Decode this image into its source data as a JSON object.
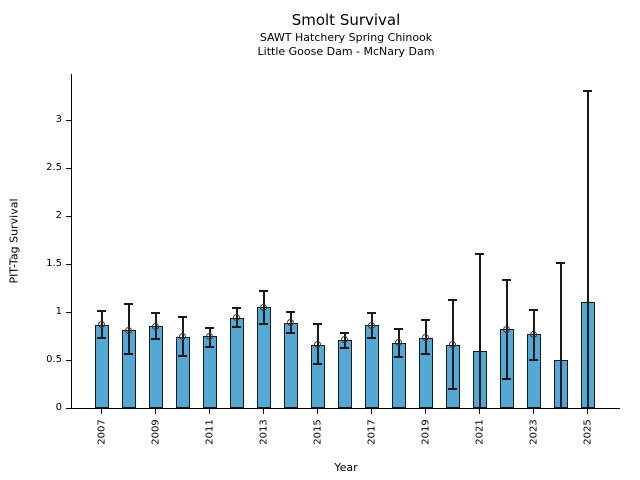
{
  "header": {
    "title": "Smolt Survival",
    "subtitle1": "SAWT Hatchery Spring Chinook",
    "subtitle2": "Little Goose Dam - McNary Dam"
  },
  "chart_data": {
    "type": "bar",
    "title": "Smolt Survival",
    "subtitle": [
      "SAWT Hatchery Spring Chinook",
      "Little Goose Dam - McNary Dam"
    ],
    "xlabel": "Year",
    "ylabel": "PIT-Tag Survival",
    "categories": [
      2007,
      2008,
      2009,
      2010,
      2011,
      2012,
      2013,
      2014,
      2015,
      2016,
      2017,
      2018,
      2019,
      2020,
      2021,
      2022,
      2023,
      2024,
      2025
    ],
    "values": [
      0.87,
      0.81,
      0.85,
      0.74,
      0.75,
      0.94,
      1.05,
      0.89,
      0.66,
      0.71,
      0.86,
      0.68,
      0.73,
      0.66,
      0.59,
      0.82,
      0.77,
      0.5,
      1.1
    ],
    "error_low": [
      0.73,
      0.56,
      0.72,
      0.54,
      0.64,
      0.84,
      0.88,
      0.78,
      0.46,
      0.63,
      0.73,
      0.53,
      0.56,
      0.2,
      0.0,
      0.3,
      0.5,
      0.0,
      0.0
    ],
    "error_high": [
      1.01,
      1.08,
      0.99,
      0.95,
      0.83,
      1.04,
      1.22,
      1.0,
      0.88,
      0.78,
      0.99,
      0.82,
      0.92,
      1.13,
      1.6,
      1.33,
      1.02,
      1.51,
      3.3
    ],
    "point_markers": [
      true,
      true,
      true,
      true,
      true,
      true,
      true,
      true,
      true,
      true,
      true,
      true,
      true,
      true,
      false,
      true,
      true,
      false,
      false
    ],
    "ylim": [
      0,
      3.48
    ],
    "xlim": [
      2005.9,
      2026.2
    ],
    "yticks": [
      0,
      0.5,
      1,
      1.5,
      2,
      2.5,
      3
    ],
    "ytick_labels": [
      "0",
      "0.5",
      "1",
      "1.5",
      "2",
      "2.5",
      "3"
    ],
    "xticks": [
      2007,
      2009,
      2011,
      2013,
      2015,
      2017,
      2019,
      2021,
      2023,
      2025
    ],
    "xtick_labels": [
      "2007",
      "2009",
      "2011",
      "2013",
      "2015",
      "2017",
      "2019",
      "2021",
      "2023",
      "2025"
    ],
    "grid": false,
    "legend_position": "none",
    "bar_color": "#56a8d4",
    "edge_color": "#1a1a1a",
    "bar_width_years": 0.52
  }
}
